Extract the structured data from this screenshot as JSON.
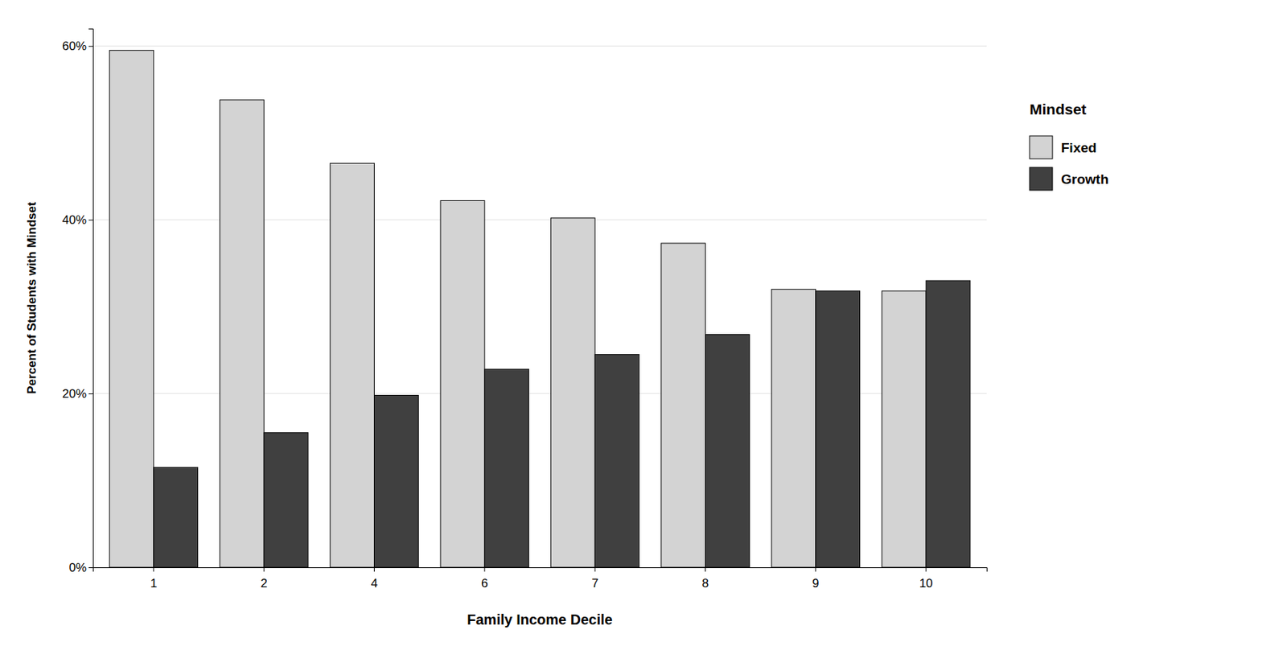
{
  "chart_data": {
    "type": "bar",
    "categories": [
      "1",
      "2",
      "4",
      "6",
      "7",
      "8",
      "9",
      "10"
    ],
    "xlabel": "Family Income Decile",
    "ylabel": "Percent of Students with Mindset",
    "legend_title": "Mindset",
    "series": [
      {
        "name": "Fixed",
        "color": "#d3d3d3",
        "values": [
          0.595,
          0.538,
          0.465,
          0.422,
          0.402,
          0.373,
          0.32,
          0.318
        ]
      },
      {
        "name": "Growth",
        "color": "#404040",
        "values": [
          0.115,
          0.155,
          0.198,
          0.228,
          0.245,
          0.268,
          0.318,
          0.33
        ]
      }
    ],
    "ylim": [
      0,
      0.62
    ],
    "yticks": [
      {
        "value": 0.0,
        "label": "0%"
      },
      {
        "value": 0.2,
        "label": "20%"
      },
      {
        "value": 0.4,
        "label": "40%"
      },
      {
        "value": 0.6,
        "label": "60%"
      }
    ],
    "grid": true,
    "legend": "right"
  }
}
